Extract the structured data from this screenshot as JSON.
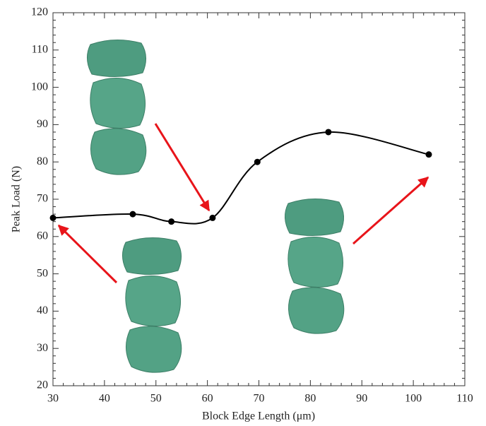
{
  "chart_data": {
    "type": "line",
    "x_label": "Block Edge Length (μm)",
    "y_label": "Peak Load (N)",
    "x": [
      30,
      45.5,
      53,
      61,
      69.7,
      83.5,
      103
    ],
    "values": [
      65,
      66,
      64,
      65,
      80,
      88,
      82
    ],
    "color": "#000000",
    "xlim": [
      30,
      110
    ],
    "xticks": [
      30,
      40,
      50,
      60,
      70,
      80,
      90,
      100,
      110
    ],
    "ylim": [
      20,
      120
    ],
    "yticks": [
      20,
      30,
      40,
      50,
      60,
      70,
      80,
      90,
      100,
      110,
      120
    ],
    "grid": false
  }
}
